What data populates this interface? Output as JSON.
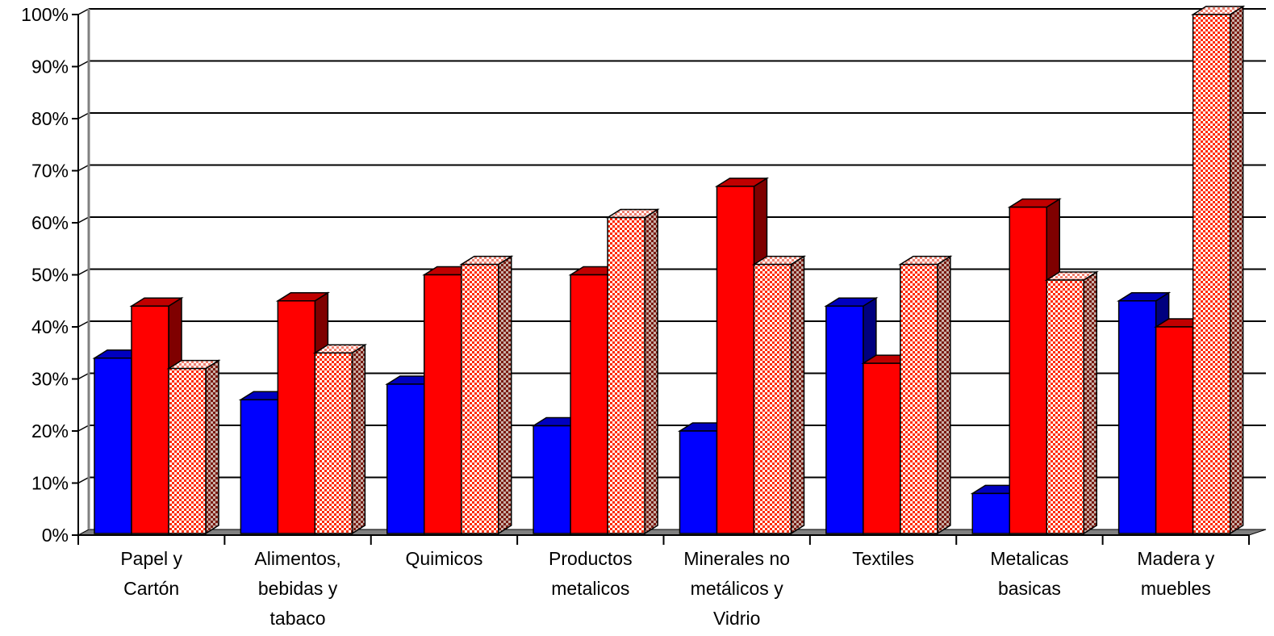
{
  "chart_data": {
    "type": "bar",
    "title": "",
    "xlabel": "",
    "ylabel": "",
    "ylim": [
      0,
      100
    ],
    "y_ticks": [
      "0%",
      "10%",
      "20%",
      "30%",
      "40%",
      "50%",
      "60%",
      "70%",
      "80%",
      "90%",
      "100%"
    ],
    "grid": true,
    "legend": "none",
    "categories": [
      [
        "Papel y",
        "Cartón"
      ],
      [
        "Alimentos,",
        "bebidas y",
        "tabaco"
      ],
      [
        "Quimicos"
      ],
      [
        "Productos",
        "metalicos"
      ],
      [
        "Minerales no",
        "metálicos y",
        "Vidrio"
      ],
      [
        "Textiles"
      ],
      [
        "Metalicas",
        "basicas"
      ],
      [
        "Madera y",
        "muebles"
      ]
    ],
    "series": [
      {
        "values": [
          34,
          26,
          29,
          21,
          20,
          44,
          8,
          45
        ],
        "color": "#0000ff",
        "pattern": "solid"
      },
      {
        "values": [
          44,
          45,
          50,
          50,
          67,
          33,
          63,
          40
        ],
        "color": "#ff0000",
        "pattern": "solid"
      },
      {
        "values": [
          32,
          35,
          52,
          61,
          52,
          52,
          49,
          100
        ],
        "color": "#ff0000",
        "pattern": "checkered"
      }
    ]
  }
}
